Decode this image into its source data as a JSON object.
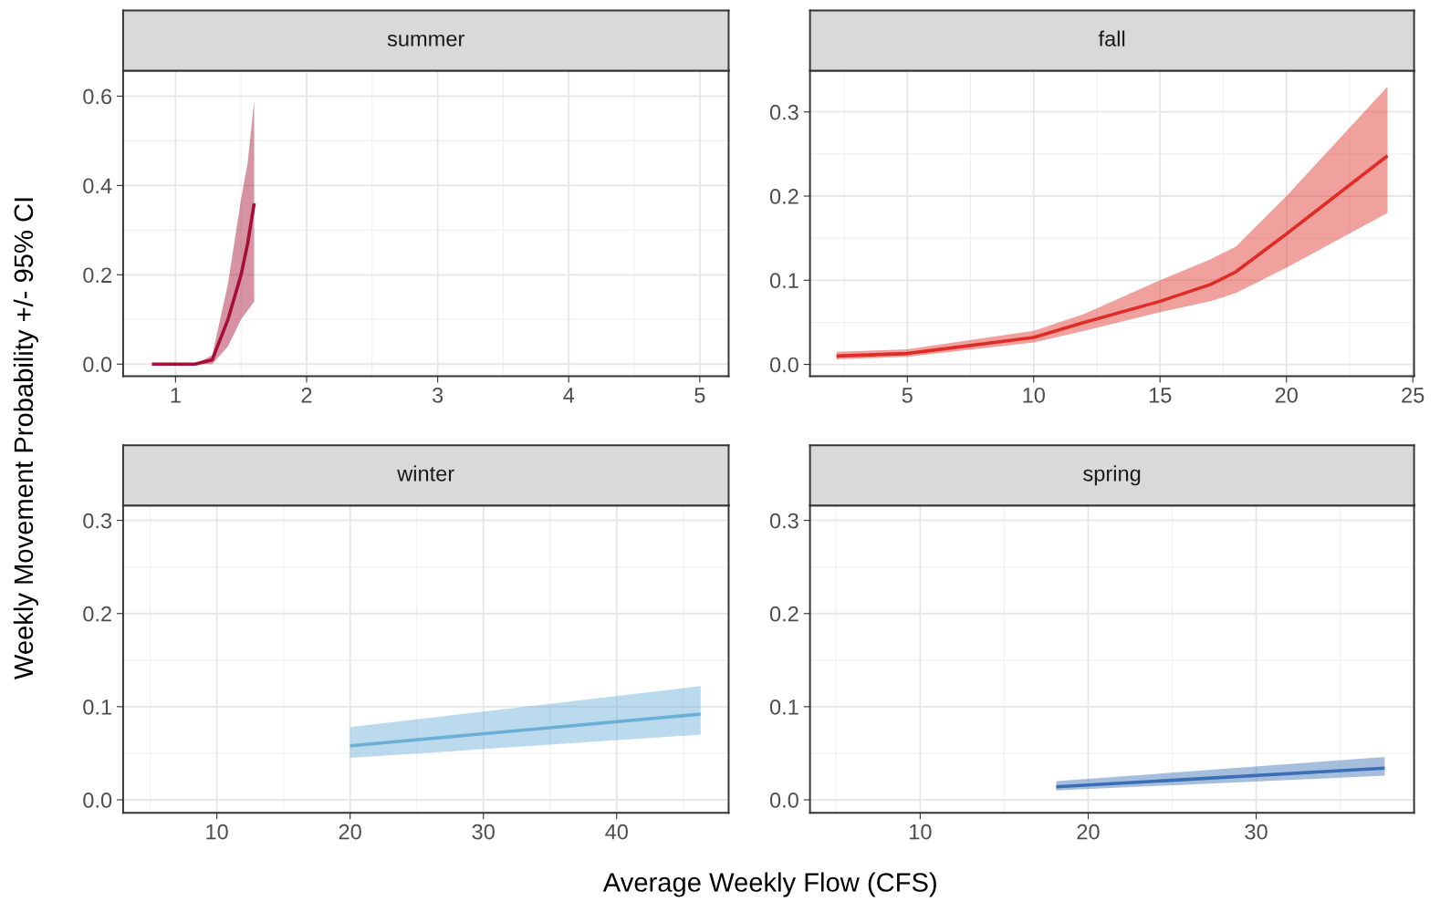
{
  "chart_data": [
    {
      "type": "line",
      "title": "summer",
      "ylabel": "Weekly Movement Probability +/- 95% CI",
      "xlim": [
        0.6,
        5.22
      ],
      "xticks": [
        1,
        2,
        3,
        4,
        5
      ],
      "ylim": [
        -0.027,
        0.657
      ],
      "yticks": [
        {
          "value": 0,
          "label": "0.0"
        },
        {
          "value": 0.2,
          "label": "0.2"
        },
        {
          "value": 0.4,
          "label": "0.4"
        },
        {
          "value": 0.6,
          "label": "0.6"
        }
      ],
      "grid": true,
      "series": [
        {
          "color": "#a50f35",
          "x": [
            0.82,
            1.15,
            1.28,
            1.4,
            1.5,
            1.55,
            1.6
          ],
          "values": [
            0,
            0,
            0.01,
            0.1,
            0.2,
            0.27,
            0.36
          ],
          "lower": [
            0,
            0,
            0,
            0.04,
            0.1,
            0.12,
            0.14
          ],
          "upper": [
            0,
            0,
            0.02,
            0.18,
            0.37,
            0.45,
            0.59
          ]
        }
      ]
    },
    {
      "type": "line",
      "title": "fall",
      "xlim": [
        1.15,
        25.05
      ],
      "xticks": [
        5,
        10,
        15,
        20,
        25
      ],
      "ylim": [
        -0.014,
        0.349
      ],
      "yticks": [
        {
          "value": 0,
          "label": "0.0"
        },
        {
          "value": 0.1,
          "label": "0.1"
        },
        {
          "value": 0.2,
          "label": "0.2"
        },
        {
          "value": 0.3,
          "label": "0.3"
        }
      ],
      "grid": true,
      "series": [
        {
          "color": "#de2d26",
          "x": [
            2.2,
            5,
            10,
            12,
            15,
            17,
            18,
            20,
            24
          ],
          "values": [
            0.01,
            0.013,
            0.032,
            0.05,
            0.075,
            0.095,
            0.11,
            0.155,
            0.248
          ],
          "lower": [
            0.006,
            0.009,
            0.026,
            0.04,
            0.062,
            0.075,
            0.085,
            0.115,
            0.18
          ],
          "upper": [
            0.015,
            0.018,
            0.04,
            0.06,
            0.1,
            0.125,
            0.14,
            0.2,
            0.33
          ]
        }
      ]
    },
    {
      "type": "line",
      "title": "winter",
      "xlabel": "Average Weekly Flow (CFS)",
      "xlim": [
        2.97,
        48.4
      ],
      "xticks": [
        10,
        20,
        30,
        40
      ],
      "ylim": [
        -0.014,
        0.316
      ],
      "yticks": [
        {
          "value": 0,
          "label": "0.0"
        },
        {
          "value": 0.1,
          "label": "0.1"
        },
        {
          "value": 0.2,
          "label": "0.2"
        },
        {
          "value": 0.3,
          "label": "0.3"
        }
      ],
      "grid": true,
      "series": [
        {
          "color": "#6baed6",
          "x": [
            20,
            46.3
          ],
          "values": [
            0.058,
            0.092
          ],
          "lower": [
            0.045,
            0.07
          ],
          "upper": [
            0.078,
            0.122
          ]
        }
      ]
    },
    {
      "type": "line",
      "title": "spring",
      "xlim": [
        3.44,
        39.4
      ],
      "xticks": [
        10,
        20,
        30
      ],
      "ylim": [
        -0.014,
        0.316
      ],
      "yticks": [
        {
          "value": 0,
          "label": "0.0"
        },
        {
          "value": 0.1,
          "label": "0.1"
        },
        {
          "value": 0.2,
          "label": "0.2"
        },
        {
          "value": 0.3,
          "label": "0.3"
        }
      ],
      "grid": true,
      "series": [
        {
          "color": "#3a6fb5",
          "x": [
            18.1,
            37.65
          ],
          "values": [
            0.014,
            0.034
          ],
          "lower": [
            0.01,
            0.026
          ],
          "upper": [
            0.02,
            0.046
          ]
        }
      ]
    }
  ]
}
